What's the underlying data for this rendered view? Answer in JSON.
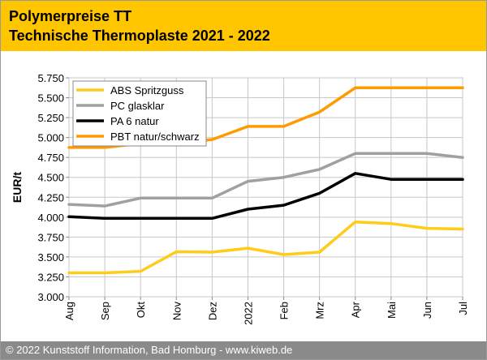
{
  "header": {
    "title_line1": "Polymerpreise TT",
    "title_line2": "Technische Thermoplaste 2021 - 2022"
  },
  "footer": {
    "text": "© 2022 Kunststoff Information, Bad Homburg - www.kiweb.de"
  },
  "colors": {
    "header_bg": "#ffc600",
    "footer_bg": "#8a8a8a",
    "ABS Spritzguss": "#ffcc1a",
    "PC glasklar": "#a0a0a0",
    "PA 6 natur": "#000000",
    "PBT natur/schwarz": "#ff9b00"
  },
  "chart_data": {
    "type": "line",
    "ylabel": "EUR/t",
    "xlabel": "",
    "ylim": [
      3000,
      5750
    ],
    "yticks": [
      3000,
      3250,
      3500,
      3750,
      4000,
      4250,
      4500,
      4750,
      5000,
      5250,
      5500,
      5750
    ],
    "ytick_labels": [
      "3.000",
      "3.250",
      "3.500",
      "3.750",
      "4.000",
      "4.250",
      "4.500",
      "4.750",
      "5.000",
      "5.250",
      "5.500",
      "5.750"
    ],
    "categories": [
      "Aug",
      "Sep",
      "Okt",
      "Nov",
      "Dez",
      "2022",
      "Feb",
      "Mrz",
      "Apr",
      "Mai",
      "Jun",
      "Jul"
    ],
    "grid": true,
    "legend_position": "top-left",
    "series": [
      {
        "name": "ABS Spritzguss",
        "values": [
          3300,
          3300,
          3320,
          3565,
          3560,
          3610,
          3530,
          3560,
          3940,
          3920,
          3860,
          3850
        ]
      },
      {
        "name": "PC glasklar",
        "values": [
          4160,
          4140,
          4240,
          4240,
          4240,
          4450,
          4500,
          4600,
          4800,
          4800,
          4800,
          4750
        ]
      },
      {
        "name": "PA 6 natur",
        "values": [
          4005,
          3985,
          3985,
          3985,
          3985,
          4100,
          4150,
          4300,
          4550,
          4475,
          4475,
          4475
        ]
      },
      {
        "name": "PBT natur/schwarz",
        "values": [
          4875,
          4875,
          4925,
          4925,
          4975,
          5140,
          5140,
          5320,
          5625,
          5625,
          5625,
          5625
        ]
      }
    ]
  }
}
